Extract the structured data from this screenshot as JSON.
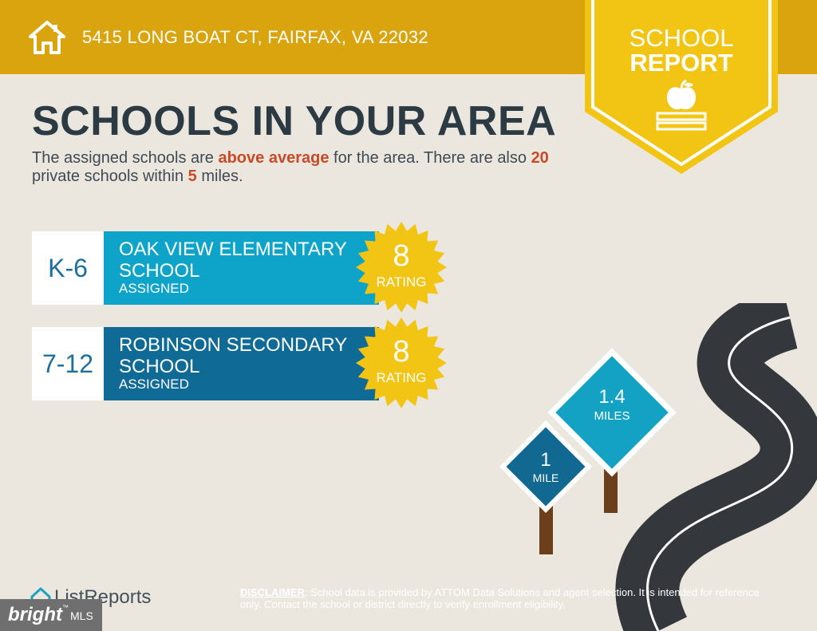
{
  "header": {
    "address": "5415 LONG BOAT CT, FAIRFAX, VA 22032",
    "icon": "home-icon",
    "accent_color": "#d9a40e"
  },
  "badge": {
    "line1": "SCHOOL",
    "line2": "REPORT",
    "icon": "apple-on-books-icon",
    "color": "#f2c414"
  },
  "main": {
    "title": "SCHOOLS IN YOUR AREA",
    "intro": {
      "t1": "The assigned schools are ",
      "h1": "above average",
      "t2": " for the area. There are also ",
      "h2": "20",
      "t3": " private schools within ",
      "h3": "5",
      "t4": " miles."
    },
    "highlight_color": "#c94a26"
  },
  "schools": [
    {
      "grades": "K-6",
      "name": "OAK VIEW ELEMENTARY SCHOOL",
      "status": "ASSIGNED",
      "rating": "8",
      "rating_label": "RATING",
      "color": "#0ea4c9"
    },
    {
      "grades": "7-12",
      "name": "ROBINSON SECONDARY SCHOOL",
      "status": "ASSIGNED",
      "rating": "8",
      "rating_label": "RATING",
      "color": "#0f6a96"
    }
  ],
  "signs": [
    {
      "value": "1",
      "unit": "MILE"
    },
    {
      "value": "1.4",
      "unit": "MILES"
    }
  ],
  "footer": {
    "logo_text": "ListReports",
    "mls_brand": "bright",
    "mls_tm": "™",
    "mls_label": "MLS",
    "disclaimer_label": "DISCLAIMER",
    "disclaimer_text": ": School data is provided by ATTOM Data Solutions and agent selection. It is intended for reference only. Contact the school or district directly to verify enrollment eligibility."
  }
}
